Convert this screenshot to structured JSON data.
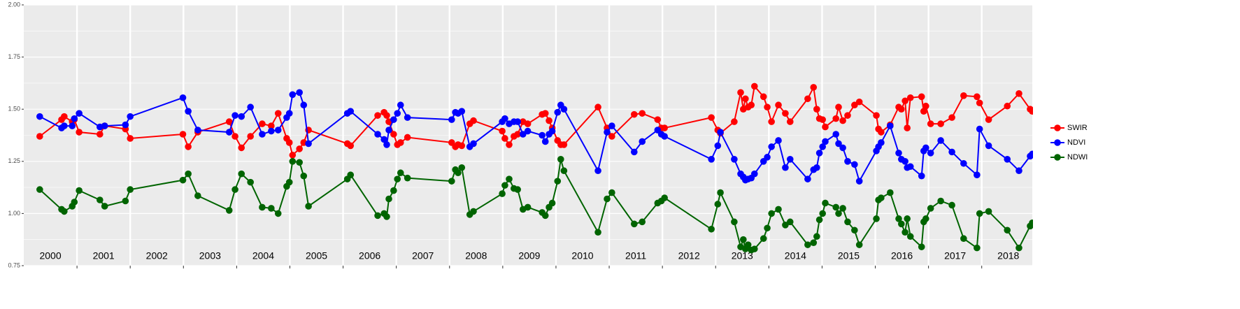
{
  "chart_data": {
    "type": "line",
    "x": [
      2000.3,
      2000.71,
      2000.76,
      2000.91,
      2000.95,
      2001.04,
      2001.43,
      2001.52,
      2001.91,
      2002.0,
      2002.99,
      2003.09,
      2003.27,
      2003.86,
      2003.97,
      2004.09,
      2004.26,
      2004.48,
      2004.65,
      2004.78,
      2004.94,
      2004.99,
      2005.05,
      2005.18,
      2005.26,
      2005.35,
      2006.08,
      2006.14,
      2006.65,
      2006.77,
      2006.82,
      2006.86,
      2006.95,
      2007.02,
      2007.08,
      2007.21,
      2008.04,
      2008.11,
      2008.16,
      2008.23,
      2008.38,
      2008.45,
      2008.99,
      2009.04,
      2009.12,
      2009.21,
      2009.28,
      2009.38,
      2009.47,
      2009.74,
      2009.8,
      2009.87,
      2009.93,
      2010.03,
      2010.09,
      2010.15,
      2010.79,
      2010.96,
      2011.05,
      2011.47,
      2011.62,
      2011.91,
      2011.98,
      2012.04,
      2012.92,
      2013.04,
      2013.09,
      2013.35,
      2013.47,
      2013.52,
      2013.56,
      2013.61,
      2013.67,
      2013.73,
      2013.9,
      2013.97,
      2014.05,
      2014.18,
      2014.31,
      2014.4,
      2014.73,
      2014.84,
      2014.9,
      2014.95,
      2015.01,
      2015.06,
      2015.26,
      2015.31,
      2015.39,
      2015.48,
      2015.61,
      2015.7,
      2016.02,
      2016.06,
      2016.11,
      2016.28,
      2016.44,
      2016.49,
      2016.56,
      2016.6,
      2016.66,
      2016.87,
      2016.91,
      2016.95,
      2017.04,
      2017.23,
      2017.44,
      2017.66,
      2017.91,
      2017.96,
      2018.13,
      2018.48,
      2018.7,
      2018.91,
      2018.95
    ],
    "series": [
      {
        "name": "SWIR",
        "color": "#ff0000",
        "values": [
          1.37,
          1.45,
          1.465,
          1.44,
          1.45,
          1.39,
          1.38,
          1.42,
          1.405,
          1.36,
          1.38,
          1.32,
          1.39,
          1.44,
          1.37,
          1.315,
          1.37,
          1.43,
          1.42,
          1.48,
          1.36,
          1.34,
          1.28,
          1.31,
          1.34,
          1.4,
          1.335,
          1.325,
          1.47,
          1.485,
          1.47,
          1.44,
          1.38,
          1.33,
          1.34,
          1.365,
          1.34,
          1.32,
          1.33,
          1.325,
          1.43,
          1.445,
          1.395,
          1.36,
          1.33,
          1.37,
          1.38,
          1.44,
          1.43,
          1.475,
          1.48,
          1.445,
          1.41,
          1.35,
          1.33,
          1.33,
          1.51,
          1.41,
          1.37,
          1.475,
          1.48,
          1.45,
          1.41,
          1.41,
          1.46,
          1.4,
          1.385,
          1.44,
          1.58,
          1.5,
          1.55,
          1.51,
          1.52,
          1.61,
          1.56,
          1.51,
          1.44,
          1.52,
          1.48,
          1.44,
          1.55,
          1.605,
          1.5,
          1.455,
          1.45,
          1.415,
          1.455,
          1.51,
          1.445,
          1.47,
          1.52,
          1.535,
          1.47,
          1.405,
          1.39,
          1.425,
          1.51,
          1.5,
          1.54,
          1.41,
          1.555,
          1.56,
          1.49,
          1.515,
          1.43,
          1.43,
          1.46,
          1.565,
          1.56,
          1.53,
          1.45,
          1.515,
          1.575,
          1.5,
          1.49
        ]
      },
      {
        "name": "NDVI",
        "color": "#0000ff",
        "values": [
          1.465,
          1.41,
          1.42,
          1.42,
          1.455,
          1.48,
          1.415,
          1.42,
          1.425,
          1.465,
          1.555,
          1.49,
          1.4,
          1.39,
          1.47,
          1.465,
          1.51,
          1.38,
          1.395,
          1.4,
          1.46,
          1.48,
          1.57,
          1.58,
          1.52,
          1.335,
          1.48,
          1.49,
          1.38,
          1.355,
          1.33,
          1.4,
          1.45,
          1.48,
          1.52,
          1.46,
          1.45,
          1.485,
          1.48,
          1.49,
          1.32,
          1.335,
          1.44,
          1.455,
          1.43,
          1.44,
          1.44,
          1.38,
          1.395,
          1.375,
          1.345,
          1.38,
          1.395,
          1.485,
          1.52,
          1.5,
          1.205,
          1.39,
          1.42,
          1.295,
          1.345,
          1.4,
          1.38,
          1.37,
          1.26,
          1.325,
          1.39,
          1.26,
          1.19,
          1.175,
          1.16,
          1.165,
          1.17,
          1.19,
          1.25,
          1.27,
          1.32,
          1.35,
          1.22,
          1.26,
          1.165,
          1.21,
          1.22,
          1.29,
          1.32,
          1.345,
          1.38,
          1.335,
          1.315,
          1.25,
          1.235,
          1.155,
          1.3,
          1.32,
          1.34,
          1.42,
          1.29,
          1.26,
          1.25,
          1.22,
          1.225,
          1.18,
          1.3,
          1.315,
          1.29,
          1.35,
          1.295,
          1.24,
          1.185,
          1.405,
          1.325,
          1.26,
          1.205,
          1.275,
          1.285
        ]
      },
      {
        "name": "NDWI",
        "color": "#006400",
        "values": [
          1.115,
          1.02,
          1.01,
          1.035,
          1.055,
          1.11,
          1.065,
          1.035,
          1.06,
          1.115,
          1.16,
          1.19,
          1.085,
          1.015,
          1.115,
          1.19,
          1.15,
          1.03,
          1.025,
          1.0,
          1.13,
          1.15,
          1.25,
          1.245,
          1.18,
          1.035,
          1.165,
          1.185,
          0.99,
          1.0,
          0.985,
          1.07,
          1.11,
          1.165,
          1.195,
          1.17,
          1.155,
          1.21,
          1.195,
          1.22,
          0.995,
          1.01,
          1.095,
          1.135,
          1.165,
          1.12,
          1.115,
          1.02,
          1.03,
          1.005,
          0.99,
          1.03,
          1.05,
          1.155,
          1.26,
          1.205,
          0.91,
          1.07,
          1.1,
          0.95,
          0.96,
          1.05,
          1.06,
          1.075,
          0.925,
          1.045,
          1.1,
          0.96,
          0.84,
          0.875,
          0.83,
          0.85,
          0.825,
          0.83,
          0.88,
          0.93,
          1.0,
          1.02,
          0.945,
          0.96,
          0.85,
          0.86,
          0.89,
          0.97,
          1.0,
          1.05,
          1.03,
          1.0,
          1.025,
          0.96,
          0.92,
          0.85,
          0.975,
          1.065,
          1.075,
          1.1,
          0.975,
          0.95,
          0.91,
          0.975,
          0.89,
          0.84,
          0.96,
          0.975,
          1.025,
          1.06,
          1.04,
          0.88,
          0.835,
          1.0,
          1.01,
          0.92,
          0.835,
          0.94,
          0.955
        ]
      }
    ],
    "xlim": [
      2000,
      2018.95
    ],
    "xticks": [
      2001,
      2002,
      2003,
      2004,
      2005,
      2006,
      2007,
      2008,
      2009,
      2010,
      2011,
      2012,
      2013,
      2014,
      2015,
      2016,
      2017,
      2018
    ],
    "ylim": [
      0.75,
      2.0
    ],
    "yticks": [
      {
        "value": 0.75,
        "label": "0.75"
      },
      {
        "value": 1.0,
        "label": "1.00"
      },
      {
        "value": 1.25,
        "label": "1.25"
      },
      {
        "value": 1.5,
        "label": "1.50"
      },
      {
        "value": 1.75,
        "label": "1.75"
      },
      {
        "value": 2.0,
        "label": "2.00"
      }
    ],
    "annotations": [
      {
        "x": 2000.5,
        "label": "2000"
      },
      {
        "x": 2001.5,
        "label": "2001"
      },
      {
        "x": 2002.5,
        "label": "2002"
      },
      {
        "x": 2003.5,
        "label": "2003"
      },
      {
        "x": 2004.5,
        "label": "2004"
      },
      {
        "x": 2005.5,
        "label": "2005"
      },
      {
        "x": 2006.5,
        "label": "2006"
      },
      {
        "x": 2007.5,
        "label": "2007"
      },
      {
        "x": 2008.5,
        "label": "2008"
      },
      {
        "x": 2009.5,
        "label": "2009"
      },
      {
        "x": 2010.5,
        "label": "2010"
      },
      {
        "x": 2011.5,
        "label": "2011"
      },
      {
        "x": 2012.5,
        "label": "2012"
      },
      {
        "x": 2013.5,
        "label": "2013"
      },
      {
        "x": 2014.5,
        "label": "2014"
      },
      {
        "x": 2015.5,
        "label": "2015"
      },
      {
        "x": 2016.5,
        "label": "2016"
      },
      {
        "x": 2017.5,
        "label": "2017"
      },
      {
        "x": 2018.5,
        "label": "2018"
      }
    ],
    "grid": true,
    "legend": "right"
  }
}
